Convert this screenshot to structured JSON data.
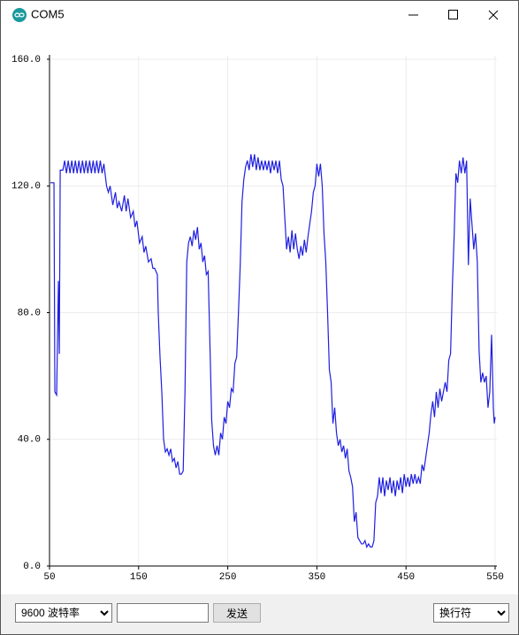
{
  "window": {
    "title": "COM5"
  },
  "chart_data": {
    "type": "line",
    "x": [
      51,
      55,
      56,
      58,
      60,
      61,
      62,
      65,
      67,
      69,
      71,
      73,
      75,
      77,
      79,
      81,
      83,
      85,
      87,
      89,
      91,
      93,
      95,
      97,
      99,
      101,
      103,
      105,
      107,
      109,
      111,
      114,
      116,
      118,
      121,
      124,
      126,
      128,
      131,
      134,
      136,
      138,
      141,
      144,
      146,
      148,
      151,
      154,
      156,
      158,
      161,
      164,
      166,
      168,
      171,
      172,
      174,
      176,
      178,
      180,
      182,
      184,
      186,
      188,
      190,
      192,
      194,
      196,
      198,
      200,
      202,
      204,
      206,
      208,
      210,
      212,
      214,
      216,
      218,
      220,
      222,
      224,
      226,
      228,
      230,
      232,
      234,
      236,
      238,
      240,
      242,
      244,
      246,
      248,
      250,
      252,
      254,
      256,
      258,
      260,
      262,
      264,
      266,
      268,
      270,
      272,
      274,
      276,
      278,
      280,
      282,
      284,
      286,
      288,
      290,
      292,
      294,
      296,
      298,
      300,
      302,
      304,
      306,
      308,
      310,
      312,
      314,
      316,
      318,
      320,
      322,
      324,
      326,
      328,
      330,
      332,
      334,
      336,
      338,
      340,
      342,
      344,
      346,
      348,
      350,
      352,
      354,
      356,
      358,
      360,
      362,
      364,
      366,
      368,
      370,
      372,
      374,
      376,
      378,
      380,
      382,
      384,
      386,
      388,
      390,
      392,
      394,
      396,
      398,
      400,
      402,
      404,
      406,
      408,
      410,
      412,
      414,
      416,
      418,
      420,
      422,
      424,
      426,
      428,
      430,
      432,
      434,
      436,
      438,
      440,
      442,
      444,
      446,
      448,
      450,
      452,
      454,
      456,
      458,
      460,
      462,
      464,
      466,
      468,
      470,
      472,
      474,
      476,
      478,
      480,
      482,
      484,
      486,
      488,
      490,
      492,
      494,
      496,
      498,
      500,
      502,
      504,
      506,
      508,
      510,
      512,
      514,
      516,
      518,
      520,
      522,
      524,
      526,
      528,
      530,
      532,
      534,
      536,
      538,
      540,
      542,
      544,
      546,
      547,
      548,
      549,
      550
    ],
    "series": [
      {
        "color": "#1f1fe0",
        "values": [
          121,
          121,
          55,
          54,
          90,
          67,
          125,
          125,
          128,
          124,
          128,
          124,
          128,
          124,
          128,
          124,
          128,
          124,
          128,
          124,
          128,
          124,
          128,
          124,
          128,
          124,
          128,
          124,
          128,
          124,
          127,
          120,
          118,
          120,
          114,
          118,
          113,
          115,
          112,
          117,
          112,
          116,
          110,
          112,
          107,
          109,
          102,
          104,
          99,
          101,
          96,
          97,
          94,
          94,
          92,
          80,
          66,
          55,
          40,
          36,
          37,
          35,
          37,
          33,
          34,
          31,
          33,
          29,
          29,
          30,
          55,
          96,
          102,
          104,
          101,
          106,
          103,
          107,
          100,
          102,
          96,
          98,
          92,
          93,
          70,
          46,
          38,
          35,
          38,
          35,
          42,
          40,
          47,
          45,
          52,
          50,
          56,
          55,
          64,
          66,
          80,
          95,
          115,
          122,
          126,
          128,
          125,
          130,
          126,
          130,
          125,
          129,
          125,
          128,
          125,
          128,
          125,
          128,
          124,
          128,
          125,
          128,
          124,
          128,
          122,
          120,
          110,
          100,
          104,
          99,
          106,
          100,
          105,
          100,
          97,
          101,
          98,
          103,
          99,
          104,
          108,
          112,
          118,
          120,
          127,
          123,
          127,
          120,
          105,
          96,
          80,
          62,
          58,
          45,
          50,
          42,
          38,
          40,
          36,
          38,
          34,
          37,
          30,
          28,
          25,
          14,
          17,
          9,
          8,
          7,
          7,
          8,
          6,
          7,
          6,
          6,
          8,
          20,
          22,
          28,
          23,
          28,
          22,
          27,
          24,
          28,
          23,
          27,
          22,
          27,
          24,
          28,
          23,
          29,
          25,
          28,
          25,
          29,
          26,
          29,
          26,
          28,
          26,
          32,
          30,
          34,
          38,
          42,
          48,
          52,
          47,
          55,
          50,
          56,
          52,
          55,
          58,
          55,
          65,
          67,
          88,
          104,
          124,
          121,
          128,
          124,
          129,
          124,
          128,
          95,
          116,
          108,
          100,
          105,
          96,
          68,
          58,
          61,
          58,
          60,
          50,
          55,
          73,
          62,
          50,
          45,
          47
        ]
      }
    ],
    "xlim": [
      50,
      550
    ],
    "xticks": [
      50,
      150,
      250,
      350,
      450,
      550
    ],
    "ylim": [
      0,
      160
    ],
    "yticks": [
      {
        "value": 0,
        "label": "0.0"
      },
      {
        "value": 40,
        "label": "40.0"
      },
      {
        "value": 80,
        "label": "80.0"
      },
      {
        "value": 120,
        "label": "120.0"
      },
      {
        "value": 160,
        "label": "160.0"
      }
    ],
    "grid": true
  },
  "controls": {
    "baud_rate": "9600 波特率",
    "send": "发送",
    "line_ending": "换行符"
  }
}
